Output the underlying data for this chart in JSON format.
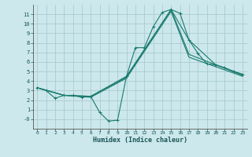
{
  "xlabel": "Humidex (Indice chaleur)",
  "background_color": "#cce8ec",
  "grid_color": "#aaccd0",
  "line_color": "#1a7a6e",
  "xlim": [
    -0.5,
    23.5
  ],
  "ylim": [
    -1,
    12
  ],
  "xticks": [
    0,
    1,
    2,
    3,
    4,
    5,
    6,
    7,
    8,
    9,
    10,
    11,
    12,
    13,
    14,
    15,
    16,
    17,
    18,
    19,
    20,
    21,
    22,
    23
  ],
  "yticks": [
    0,
    1,
    2,
    3,
    4,
    5,
    6,
    7,
    8,
    9,
    10,
    11
  ],
  "ymin_label": "-0",
  "series": [
    {
      "x": [
        0,
        1,
        2,
        3,
        4,
        5,
        6,
        7,
        8,
        9,
        10,
        11,
        12,
        13,
        14,
        15,
        16,
        17,
        18,
        19,
        20,
        21,
        22,
        23
      ],
      "y": [
        3.3,
        3.0,
        2.2,
        2.5,
        2.5,
        2.3,
        2.4,
        0.7,
        -0.2,
        -0.1,
        4.5,
        7.5,
        7.5,
        9.7,
        11.2,
        11.5,
        11.1,
        8.3,
        6.9,
        5.8,
        5.7,
        5.4,
        5.0,
        4.7
      ],
      "marker": true
    },
    {
      "x": [
        0,
        3,
        6,
        10,
        15,
        17,
        20,
        23
      ],
      "y": [
        3.3,
        2.5,
        2.4,
        4.5,
        11.5,
        8.3,
        5.7,
        4.7
      ],
      "marker": false
    },
    {
      "x": [
        0,
        3,
        6,
        10,
        15,
        17,
        20,
        23
      ],
      "y": [
        3.3,
        2.5,
        2.4,
        4.4,
        11.5,
        6.8,
        5.7,
        4.6
      ],
      "marker": false
    },
    {
      "x": [
        0,
        3,
        6,
        10,
        15,
        17,
        20,
        23
      ],
      "y": [
        3.3,
        2.5,
        2.3,
        4.3,
        11.3,
        6.5,
        5.5,
        4.5
      ],
      "marker": false
    }
  ]
}
